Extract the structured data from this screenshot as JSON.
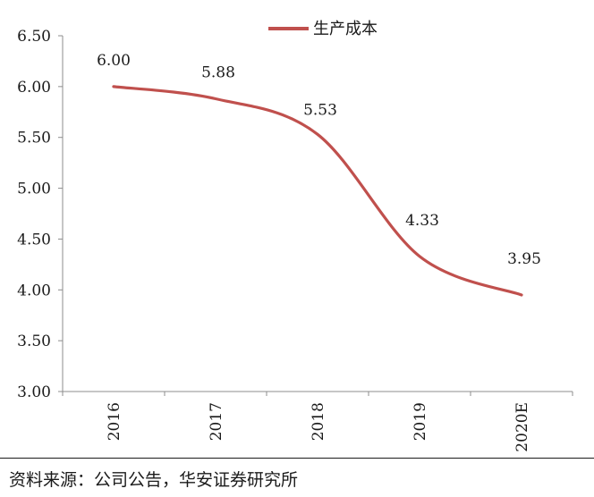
{
  "chart_data": {
    "type": "line",
    "x": [
      "2016",
      "2017",
      "2018",
      "2019",
      "2020E"
    ],
    "series": [
      {
        "name": "生产成本",
        "values": [
          6.0,
          5.88,
          5.53,
          4.33,
          3.95
        ],
        "color": "#c0504d"
      }
    ],
    "data_labels": [
      "6.00",
      "5.88",
      "5.53",
      "4.33",
      "3.95"
    ],
    "ylim": [
      3.0,
      6.5
    ],
    "yticks": [
      "6.50",
      "6.00",
      "5.50",
      "5.00",
      "4.50",
      "4.00",
      "3.50",
      "3.00"
    ],
    "legend_position": "top-center",
    "grid": false,
    "smooth": true
  },
  "source_note": "资料来源：公司公告，华安证券研究所"
}
